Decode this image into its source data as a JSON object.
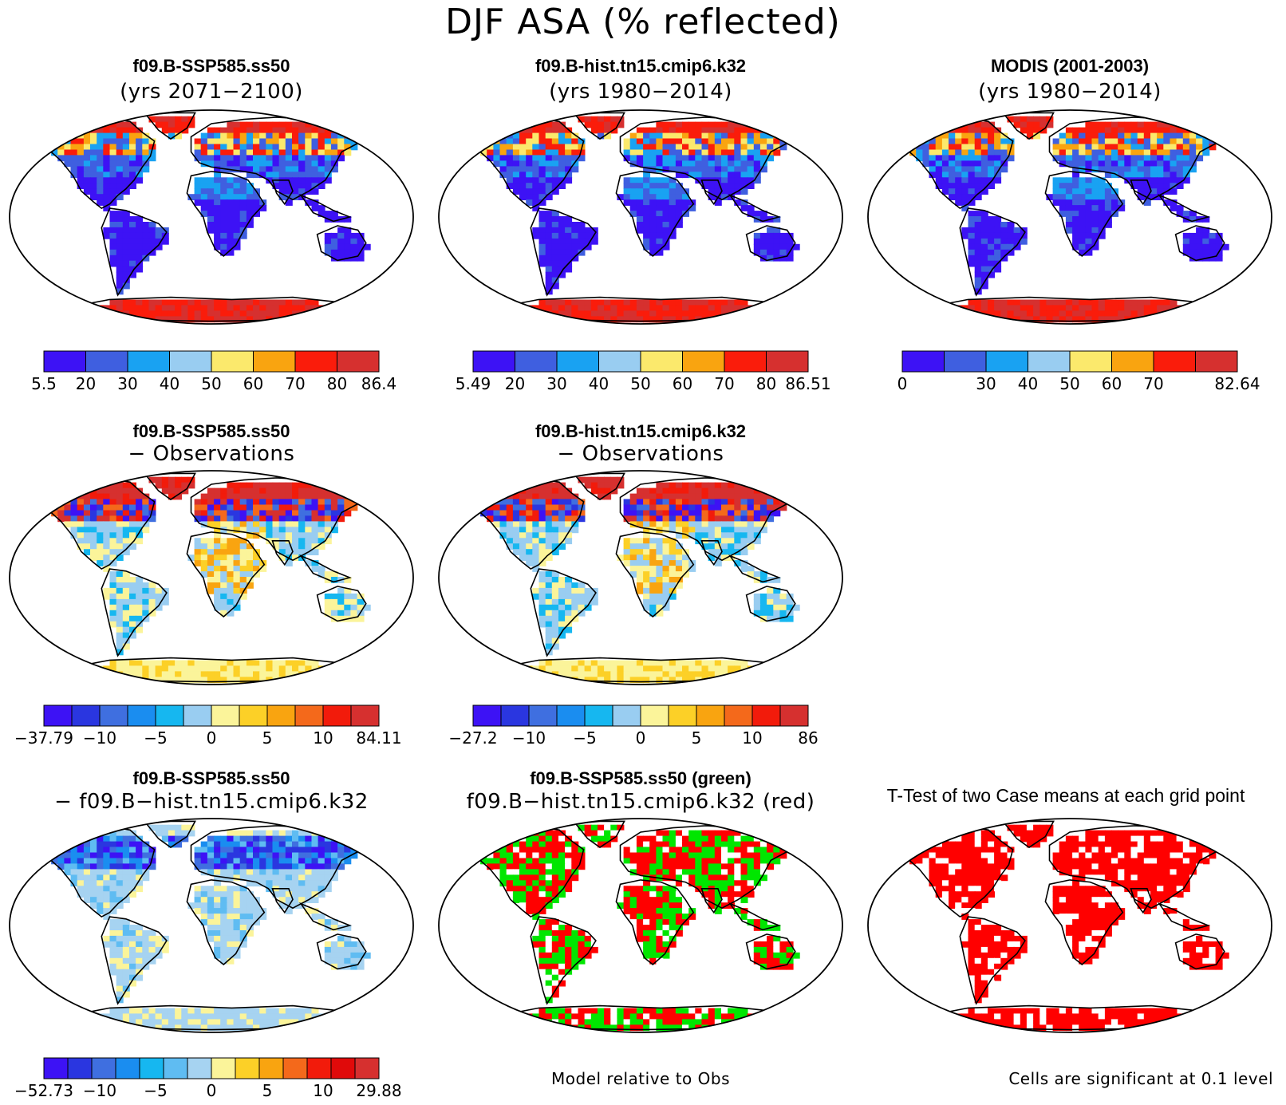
{
  "title": "DJF ASA (% reflected)",
  "land_colors": {
    "abs": [
      "#3d12f5",
      "#3f5fe0",
      "#19a2f2",
      "#99cdf1",
      "#fbe96c",
      "#f9a410",
      "#fa1c0b",
      "#d6302f"
    ],
    "bias": [
      "#3d12f5",
      "#2a36e0",
      "#3f6fe0",
      "#1a8df0",
      "#16b7f0",
      "#99cdf1",
      "#fbf49a",
      "#fcd027",
      "#f9a410",
      "#f4691b",
      "#f21b0b",
      "#d6302f"
    ],
    "diff": [
      "#3d12f5",
      "#2a36e0",
      "#3f6fe0",
      "#1a8df0",
      "#16b7f0",
      "#5fbcf2",
      "#a6d3f1",
      "#fbf49a",
      "#fcd027",
      "#f9a410",
      "#f4691b",
      "#f21b0b",
      "#e00a0a",
      "#d6302f"
    ]
  },
  "panels": [
    {
      "title": "f09.B-SSP585.ss50",
      "subtitle": "(yrs 2071−2100)",
      "colorbar": {
        "labels": [
          "5.5",
          "20",
          "30",
          "40",
          "50",
          "60",
          "70",
          "80",
          "86.4"
        ]
      }
    },
    {
      "title": "f09.B-hist.tn15.cmip6.k32",
      "subtitle": "(yrs 1980−2014)",
      "colorbar": {
        "labels": [
          "5.49",
          "20",
          "30",
          "40",
          "50",
          "60",
          "70",
          "80",
          "86.51"
        ]
      }
    },
    {
      "title": "MODIS (2001-2003)",
      "subtitle": "(yrs 1980−2014)",
      "colorbar": {
        "labels": [
          "0",
          "30",
          "40",
          "50",
          "60",
          "70",
          "82.64"
        ]
      }
    },
    {
      "title": "f09.B-SSP585.ss50",
      "subtitle": "− Observations",
      "colorbar": {
        "labels": [
          "−37.79",
          "−10",
          "−5",
          "0",
          "5",
          "10",
          "84.11"
        ]
      }
    },
    {
      "title": "f09.B-hist.tn15.cmip6.k32",
      "subtitle": "− Observations",
      "colorbar": {
        "labels": [
          "−27.2",
          "−10",
          "−5",
          "0",
          "5",
          "10",
          "86"
        ]
      }
    },
    {
      "title": "f09.B-SSP585.ss50",
      "subtitle": "− f09.B−hist.tn15.cmip6.k32",
      "colorbar": {
        "labels": [
          "−52.73",
          "−10",
          "−5",
          "0",
          "5",
          "10",
          "29.88"
        ]
      }
    },
    {
      "title": "f09.B-SSP585.ss50 (green)",
      "subtitle": "f09.B−hist.tn15.cmip6.k32 (red)",
      "footer": "Model relative to Obs"
    },
    {
      "title": "T-Test of two Case means at each grid point",
      "footer": "Cells are significant at 0.1 level"
    }
  ]
}
